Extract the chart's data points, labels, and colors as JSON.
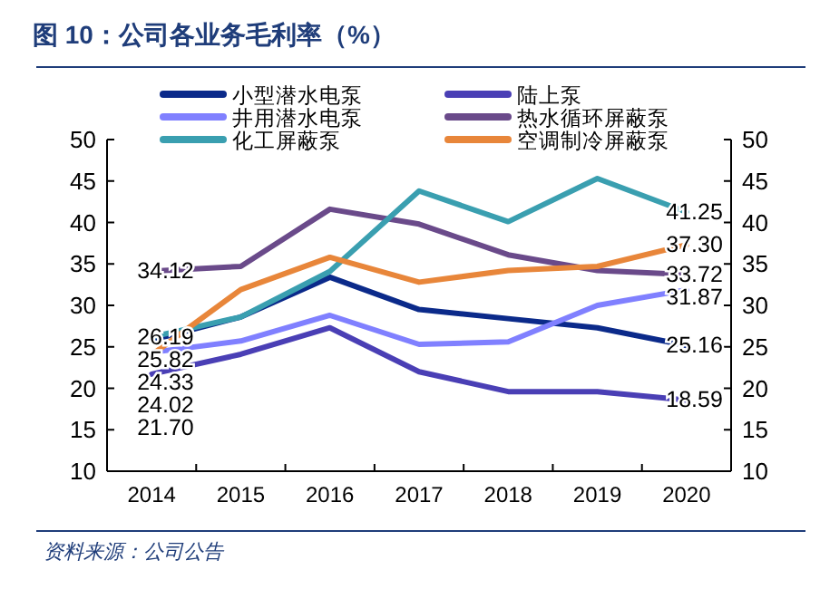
{
  "chart_data": {
    "type": "line",
    "title": "图 10：公司各业务毛利率（%）",
    "annotations": [
      "资料来源：公司公告"
    ],
    "categories": [
      "2014",
      "2015",
      "2016",
      "2017",
      "2018",
      "2019",
      "2020"
    ],
    "ylim": [
      10,
      50
    ],
    "yticks": [
      10,
      15,
      20,
      25,
      30,
      35,
      40,
      45,
      50
    ],
    "y2lim": [
      10,
      50
    ],
    "y2ticks": [
      10,
      15,
      20,
      25,
      30,
      35,
      40,
      45,
      50
    ],
    "legend": "top",
    "grid": false,
    "marker": "none",
    "line_style": "solid",
    "series": [
      {
        "name": "小型潜水电泵",
        "color": "#0b2a8a",
        "values": [
          25.82,
          28.6,
          33.4,
          29.5,
          28.4,
          27.3,
          25.16
        ],
        "value_labels": [
          "25.82",
          null,
          null,
          null,
          null,
          null,
          "25.16"
        ]
      },
      {
        "name": "陆上泵",
        "color": "#4a3fb5",
        "values": [
          21.7,
          24.1,
          27.3,
          22.0,
          19.6,
          19.6,
          18.59
        ],
        "value_labels": [
          "21.70",
          null,
          null,
          null,
          null,
          null,
          "18.59"
        ]
      },
      {
        "name": "井用潜水电泵",
        "color": "#8080ff",
        "values": [
          24.33,
          25.7,
          28.8,
          25.3,
          25.6,
          30.0,
          31.87
        ],
        "value_labels": [
          "24.33",
          null,
          null,
          null,
          null,
          null,
          "31.87"
        ]
      },
      {
        "name": "热水循环屏蔽泵",
        "color": "#6a4a8a",
        "values": [
          34.12,
          34.7,
          41.6,
          39.8,
          36.1,
          34.2,
          33.72
        ],
        "value_labels": [
          "34.12",
          null,
          null,
          null,
          null,
          null,
          "33.72"
        ]
      },
      {
        "name": "化工屏蔽泵",
        "color": "#3a9fb0",
        "values": [
          26.19,
          28.6,
          34.1,
          43.8,
          40.1,
          45.3,
          41.25
        ],
        "value_labels": [
          "26.19",
          null,
          null,
          null,
          null,
          null,
          "41.25"
        ]
      },
      {
        "name": "空调制冷屏蔽泵",
        "color": "#e8863a",
        "values": [
          24.02,
          31.9,
          35.8,
          32.8,
          34.2,
          34.7,
          37.3
        ],
        "value_labels": [
          "24.02",
          null,
          null,
          null,
          null,
          null,
          "37.30"
        ]
      }
    ]
  }
}
